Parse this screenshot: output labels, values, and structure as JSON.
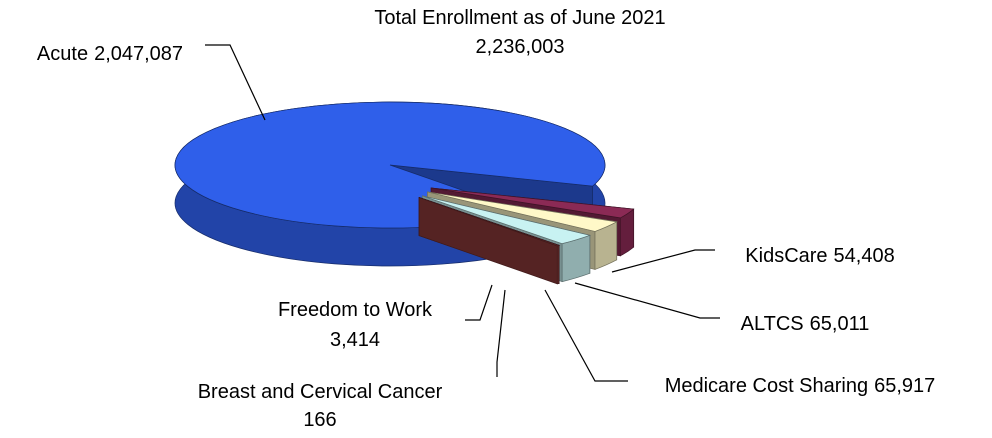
{
  "chart_data": {
    "type": "pie",
    "title": "Total Enrollment as of June 2021",
    "subtitle": "2,236,003",
    "categories": [
      "Acute",
      "KidsCare",
      "ALTCS",
      "Medicare Cost Sharing",
      "Breast and Cervical Cancer",
      "Freedom to Work"
    ],
    "values": [
      2047087,
      54408,
      65011,
      65917,
      166,
      3414
    ],
    "value_labels": [
      "2,047,087",
      "54,408",
      "65,011",
      "65,917",
      "166",
      "3,414"
    ],
    "colors": [
      "#2f5fea",
      "#8b2a55",
      "#fff8c8",
      "#c8f2f2",
      "#4a1445",
      "#8e3a3a"
    ]
  }
}
